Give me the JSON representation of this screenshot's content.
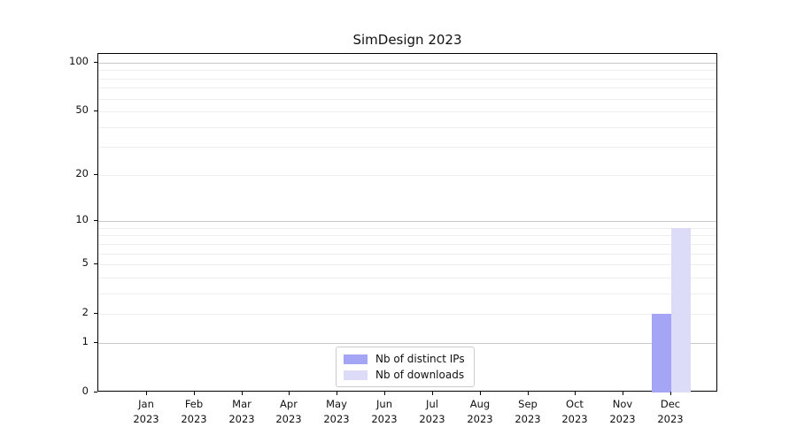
{
  "chart_data": {
    "type": "bar",
    "title": "SimDesign 2023",
    "categories": [
      "Jan",
      "Feb",
      "Mar",
      "Apr",
      "May",
      "Jun",
      "Jul",
      "Aug",
      "Sep",
      "Oct",
      "Nov",
      "Dec"
    ],
    "year": "2023",
    "series": [
      {
        "name": "Nb of distinct IPs",
        "color": "#a5a5f5",
        "values": [
          0,
          0,
          0,
          0,
          0,
          0,
          0,
          0,
          0,
          0,
          0,
          2
        ]
      },
      {
        "name": "Nb of downloads",
        "color": "#dcdcf9",
        "values": [
          0,
          0,
          0,
          0,
          0,
          0,
          0,
          0,
          0,
          0,
          0,
          9
        ]
      }
    ],
    "xlabel": "",
    "ylabel": "",
    "y_scale": "log1p",
    "ylim": [
      0,
      113
    ],
    "y_ticks": [
      0,
      1,
      2,
      5,
      10,
      20,
      50,
      100
    ],
    "minor_gridlines": [
      2,
      3,
      4,
      5,
      6,
      7,
      8,
      9,
      20,
      30,
      40,
      50,
      60,
      70,
      80,
      90
    ],
    "major_gridlines": [
      1,
      10,
      100
    ],
    "grid": true,
    "legend_position": "lower center"
  },
  "colors": {
    "axis": "#000000",
    "major_grid": "#c9c9c9",
    "minor_grid": "#ededed",
    "background": "#ffffff",
    "legend_border": "#cccccc"
  }
}
